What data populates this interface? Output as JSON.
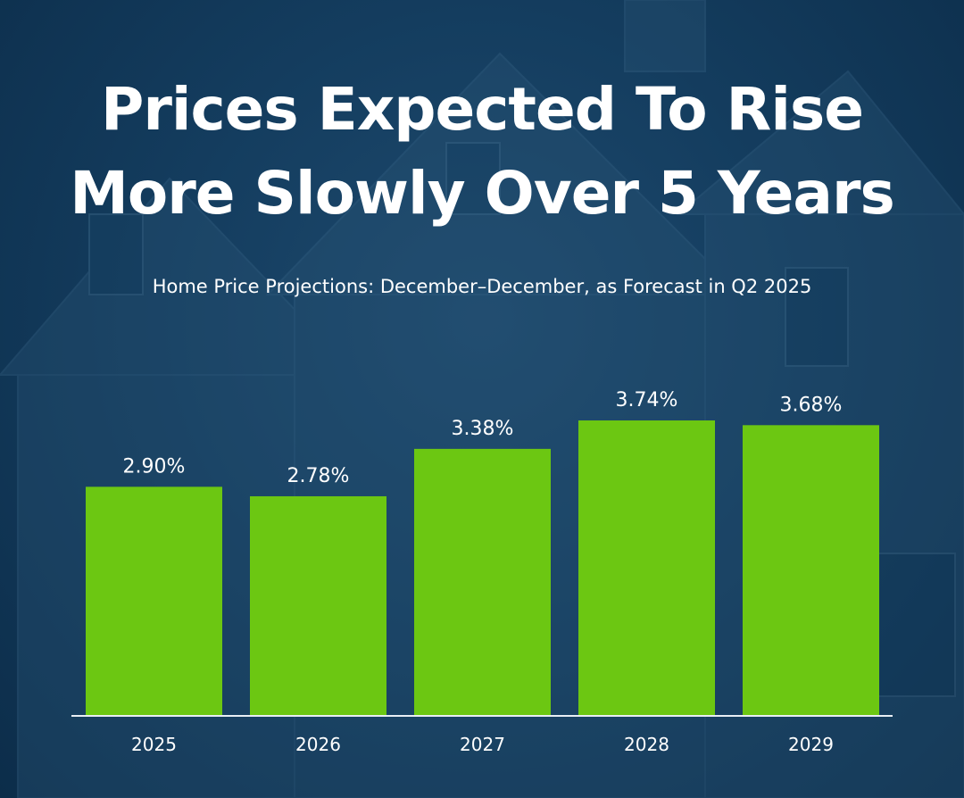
{
  "title_lines": [
    "Prices Expected To Rise",
    "More Slowly Over 5 Years"
  ],
  "chart_data": {
    "type": "bar",
    "title": "Prices Expected To Rise More Slowly Over 5 Years",
    "subtitle": "Home Price Projections: December–December, as Forecast in Q2 2025",
    "categories": [
      "2025",
      "2026",
      "2027",
      "2028",
      "2029"
    ],
    "values": [
      2.9,
      2.78,
      3.38,
      3.74,
      3.68
    ],
    "data_labels": [
      "2.90%",
      "2.78%",
      "3.38%",
      "3.74%",
      "3.68%"
    ],
    "xlabel": "",
    "ylabel": "",
    "ylim": [
      0,
      4.5
    ],
    "grid": false,
    "legend": "none"
  },
  "colors": {
    "bar": "#6cc712",
    "axis": "#e8eef4",
    "text": "#ffffff"
  }
}
